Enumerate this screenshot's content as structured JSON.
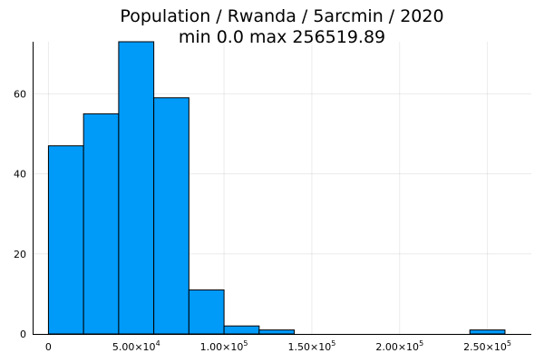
{
  "chart_data": {
    "type": "bar",
    "title": "Population / Rwanda / 5arcmin / 2020",
    "subtitle": "min 0.0  max 256519.89",
    "xlabel": "",
    "ylabel": "",
    "bin_edges": [
      0,
      20000,
      40000,
      60000,
      80000,
      100000,
      120000,
      140000,
      160000,
      180000,
      200000,
      220000,
      240000,
      260000
    ],
    "values": [
      47,
      55,
      73,
      59,
      11,
      2,
      1,
      0,
      0,
      0,
      0,
      0,
      1
    ],
    "xlim": [
      -9000,
      275000
    ],
    "ylim": [
      0,
      73
    ],
    "x_ticks": [
      {
        "value": 0,
        "mantissa": "0",
        "exponent": ""
      },
      {
        "value": 50000,
        "mantissa": "5.00×10",
        "exponent": "4"
      },
      {
        "value": 100000,
        "mantissa": "1.00×10",
        "exponent": "5"
      },
      {
        "value": 150000,
        "mantissa": "1.50×10",
        "exponent": "5"
      },
      {
        "value": 200000,
        "mantissa": "2.00×10",
        "exponent": "5"
      },
      {
        "value": 250000,
        "mantissa": "2.50×10",
        "exponent": "5"
      }
    ],
    "y_ticks": [
      0,
      20,
      40,
      60
    ],
    "grid": true,
    "legend": "none",
    "bar_color": "#009af9"
  }
}
